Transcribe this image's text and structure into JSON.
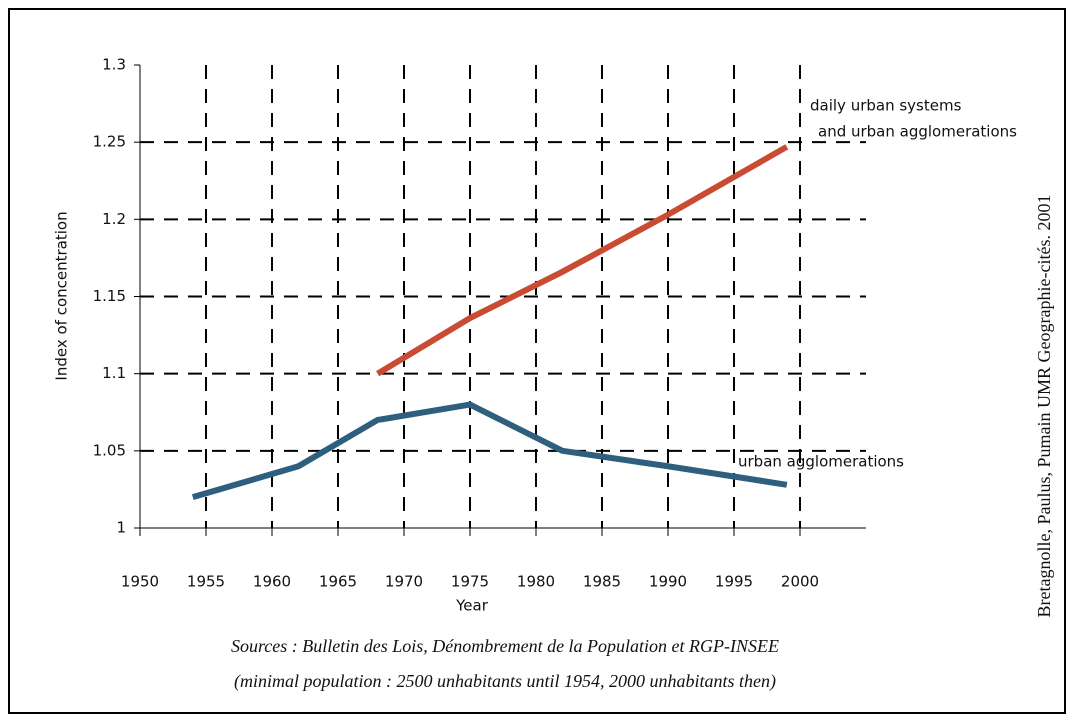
{
  "chart_data": {
    "type": "line",
    "x": [
      1954,
      1962,
      1968,
      1975,
      1982,
      1990,
      1999
    ],
    "series": [
      {
        "color": "#c84b32",
        "values": [
          null,
          null,
          1.1,
          1.136,
          1.166,
          1.203,
          1.247
        ]
      },
      {
        "color": "#2e5f7f",
        "values": [
          1.02,
          1.04,
          1.07,
          1.08,
          1.05,
          1.04,
          1.028
        ]
      }
    ],
    "annotations": [
      "daily urban systems",
      "and urban agglomerations",
      "urban agglomerations"
    ],
    "xlabel": "Year",
    "ylabel": "Index of concentration",
    "xlim": [
      1950,
      2005
    ],
    "xticks": [
      1950,
      1955,
      1960,
      1965,
      1970,
      1975,
      1980,
      1985,
      1990,
      1995,
      2000
    ],
    "ylim": [
      1,
      1.3
    ],
    "yticks": [
      1,
      1.05,
      1.1,
      1.15,
      1.2,
      1.25,
      1.3
    ],
    "grid": true,
    "sources": [
      "Sources : Bulletin des Lois, Dénombrement de la Population et RGP-INSEE",
      "(minimal population : 2500 unhabitants until 1954, 2000 unhabitants then)"
    ],
    "credit": "Bretagnolle, Paulus, Pumain UMR Geographie-cités. 2001"
  }
}
